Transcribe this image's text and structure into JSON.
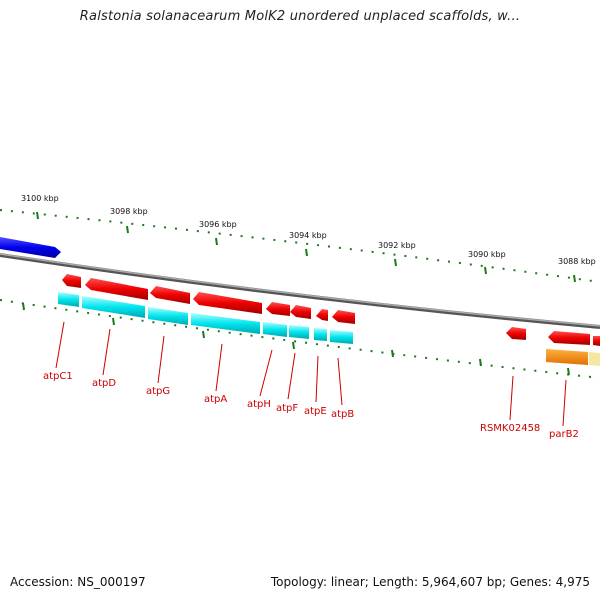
{
  "header": {
    "title": "Ralstonia solanacearum MolK2 unordered unplaced scaffolds, w..."
  },
  "footer": {
    "accession": "Accession: NS_000197",
    "summary": "Topology: linear; Length: 5,964,607 bp; Genes: 4,975"
  },
  "scale_labels": [
    "3100 kbp",
    "3098 kbp",
    "3096 kbp",
    "3094 kbp",
    "3092 kbp",
    "3090 kbp",
    "3088 kbp"
  ],
  "gene_labels": [
    "atpC1",
    "atpD",
    "atpG",
    "atpA",
    "atpH",
    "atpF",
    "atpE",
    "atpB",
    "RSMK02458",
    "parB2"
  ],
  "colors": {
    "forward_gene": "#ee0000",
    "cds": "#00e5ee",
    "other_track": "#0000ee",
    "orange_track": "#ff8c00",
    "pale_track": "#f5e6a0",
    "tick": "#1a7a1a",
    "backbone": "#777777",
    "label": "#cc0000"
  }
}
